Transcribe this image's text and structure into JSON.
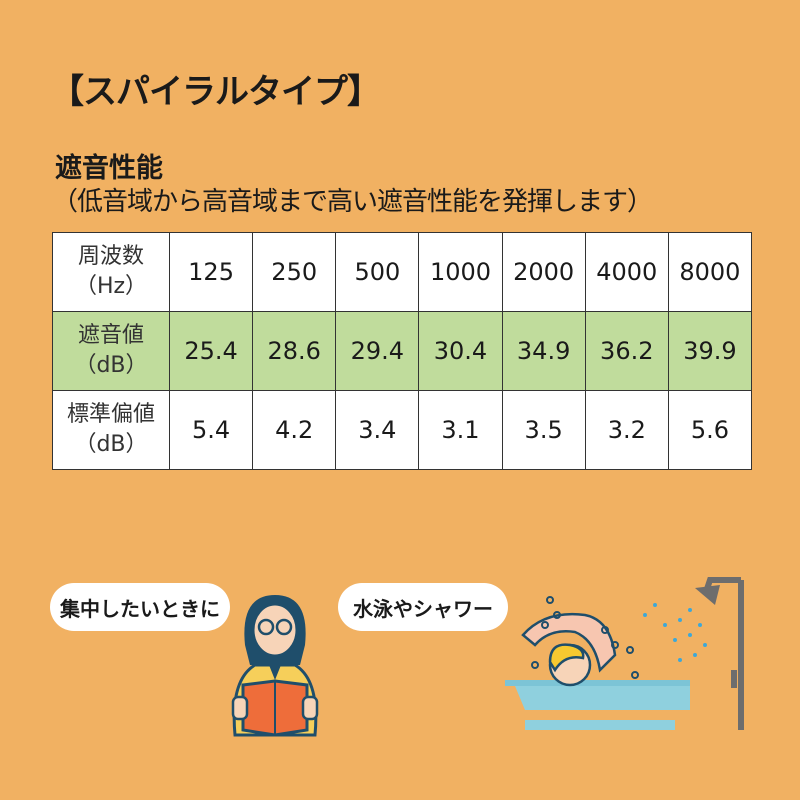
{
  "title": "【スパイラルタイプ】",
  "section": {
    "heading": "遮音性能",
    "description": "（低音域から高音域まで高い遮音性能を発揮します）"
  },
  "table": {
    "rows": [
      {
        "label_line1": "周波数",
        "label_line2": "（Hz）",
        "values": [
          "125",
          "250",
          "500",
          "1000",
          "2000",
          "4000",
          "8000"
        ]
      },
      {
        "label_line1": "遮音値",
        "label_line2": "（dB）",
        "values": [
          "25.4",
          "28.6",
          "29.4",
          "30.4",
          "34.9",
          "36.2",
          "39.9"
        ]
      },
      {
        "label_line1": "標準偏値",
        "label_line2": "（dB）",
        "values": [
          "5.4",
          "4.2",
          "3.4",
          "3.1",
          "3.5",
          "3.2",
          "5.6"
        ]
      }
    ],
    "highlight_color": "#c0dc9c"
  },
  "usecases": [
    {
      "label": "集中したいときに",
      "illustration": "reading-person"
    },
    {
      "label": "水泳やシャワー",
      "illustration": "swimmer-shower"
    }
  ]
}
